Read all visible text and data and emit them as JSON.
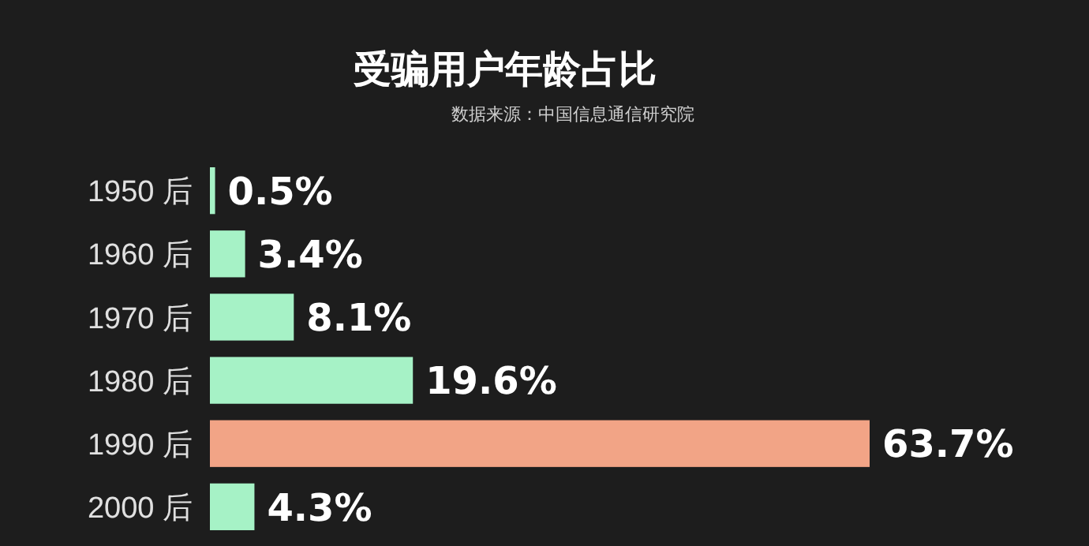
{
  "chart_data": {
    "type": "bar",
    "orientation": "horizontal",
    "title": "受骗用户年龄占比",
    "subtitle": "数据来源：中国信息通信研究院",
    "categories": [
      "1950 后",
      "1960 后",
      "1970 后",
      "1980 后",
      "1990 后",
      "2000 后"
    ],
    "values": [
      0.5,
      3.4,
      8.1,
      19.6,
      63.7,
      4.3
    ],
    "colors": [
      "#a6f2c6",
      "#a6f2c6",
      "#a6f2c6",
      "#a6f2c6",
      "#f2a486",
      "#a6f2c6"
    ],
    "value_labels": [
      "0.5%",
      "3.4%",
      "8.1%",
      "19.6%",
      "63.7%",
      "4.3%"
    ]
  }
}
